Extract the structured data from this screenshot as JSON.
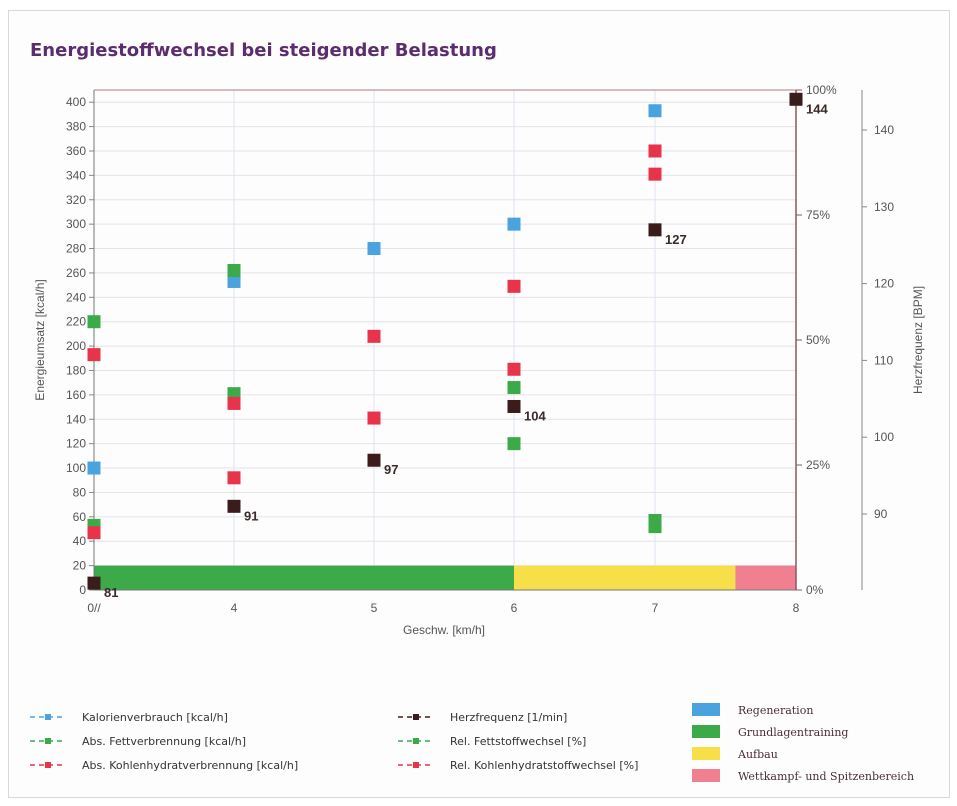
{
  "title": "Energiestoffwechsel bei steigender Belastung",
  "colors": {
    "kalorien": "#4aa3df",
    "fett": "#3daa4a",
    "kh": "#e8344a",
    "herz": "#3b1c1c",
    "regeneration": "#4aa3df",
    "grundlagen": "#3daa4a",
    "aufbau": "#f7df4a",
    "wettkampf": "#f08090"
  },
  "chart_data": {
    "type": "scatter",
    "title": "Energiestoffwechsel bei steigender Belastung",
    "xlabel": "Geschw.  [km/h]",
    "ylabel": "Energieumsatz [kcal/h]",
    "y2label": "Herzfrequenz [BPM]",
    "x_categories": [
      "0//",
      "4",
      "5",
      "6",
      "7",
      "8"
    ],
    "ylim": [
      0,
      410
    ],
    "yticks": [
      0,
      20,
      40,
      60,
      80,
      100,
      120,
      140,
      160,
      180,
      200,
      220,
      240,
      260,
      280,
      300,
      320,
      340,
      360,
      380,
      400
    ],
    "pct_ticks": [
      "0%",
      "25%",
      "50%",
      "75%",
      "100%"
    ],
    "hr_ylim": [
      80,
      145
    ],
    "hr_ticks": [
      90,
      100,
      110,
      120,
      130,
      140
    ],
    "grid": true,
    "series": [
      {
        "name": "Kalorienverbrauch [kcal/h]",
        "key": "kalorien",
        "axis": "kcal",
        "points": [
          {
            "x": 0,
            "y": 100
          },
          {
            "x": 4,
            "y": 253
          },
          {
            "x": 5,
            "y": 280
          },
          {
            "x": 6,
            "y": 300
          },
          {
            "x": 7,
            "y": 393
          }
        ]
      },
      {
        "name": "Abs. Fettverbrennung [kcal/h]",
        "key": "fett",
        "axis": "kcal",
        "points": [
          {
            "x": 0,
            "y": 220
          },
          {
            "x": 0,
            "y": 53
          },
          {
            "x": 4,
            "y": 262
          },
          {
            "x": 4,
            "y": 161
          },
          {
            "x": 6,
            "y": 166
          },
          {
            "x": 6,
            "y": 120
          },
          {
            "x": 7,
            "y": 57
          },
          {
            "x": 7,
            "y": 52
          }
        ]
      },
      {
        "name": "Abs. Kohlenhydratverbrennung [kcal/h]",
        "key": "kh",
        "axis": "kcal",
        "points": [
          {
            "x": 0,
            "y": 193
          },
          {
            "x": 0,
            "y": 47
          },
          {
            "x": 4,
            "y": 153
          },
          {
            "x": 4,
            "y": 92
          },
          {
            "x": 5,
            "y": 208
          },
          {
            "x": 5,
            "y": 141
          },
          {
            "x": 6,
            "y": 249
          },
          {
            "x": 6,
            "y": 181
          },
          {
            "x": 7,
            "y": 360
          },
          {
            "x": 7,
            "y": 341
          }
        ]
      },
      {
        "name": "Herzfrequenz [1/min]",
        "key": "herz",
        "axis": "hr",
        "points": [
          {
            "x": 0,
            "y": 81,
            "label": "81"
          },
          {
            "x": 4,
            "y": 91,
            "label": "91"
          },
          {
            "x": 5,
            "y": 97,
            "label": "97"
          },
          {
            "x": 6,
            "y": 104,
            "label": "104"
          },
          {
            "x": 7,
            "y": 127,
            "label": "127"
          },
          {
            "x": 8,
            "y": 144,
            "label": "144"
          }
        ]
      }
    ],
    "zones": [
      {
        "from": 0,
        "to": 6,
        "key": "grundlagen"
      },
      {
        "from": 6,
        "to": 7.57,
        "key": "aufbau"
      },
      {
        "from": 7.57,
        "to": 8,
        "key": "wettkampf"
      }
    ]
  },
  "legend": {
    "items": [
      {
        "label": "Kalorienverbrauch [kcal/h]",
        "key": "kalorien"
      },
      {
        "label": "Abs. Fettverbrennung [kcal/h]",
        "key": "fett"
      },
      {
        "label": "Abs. Kohlenhydratverbrennung [kcal/h]",
        "key": "kh"
      },
      {
        "label": "Herzfrequenz [1/min]",
        "key": "herz"
      },
      {
        "label": "Rel. Fettstoffwechsel [%]",
        "key": "fett"
      },
      {
        "label": "Rel. Kohlenhydratstoffwechsel [%]",
        "key": "kh"
      }
    ],
    "zones": [
      {
        "label": "Regeneration",
        "key": "regeneration"
      },
      {
        "label": "Grundlagentraining",
        "key": "grundlagen"
      },
      {
        "label": "Aufbau",
        "key": "aufbau"
      },
      {
        "label": "Wettkampf- und Spitzenbereich",
        "key": "wettkampf"
      }
    ]
  }
}
